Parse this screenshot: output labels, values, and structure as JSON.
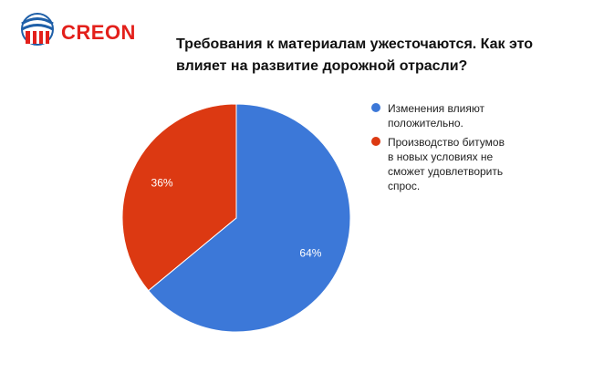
{
  "brand": {
    "name": "CREON",
    "color": "#e3201b",
    "logo_blue": "#1e5fa8"
  },
  "chart_data": {
    "type": "pie",
    "title": "Требования к материалам ужесточаются. Как это влияет на развитие дорожной отрасли?",
    "slices": [
      {
        "label": "Изменения влияют положительно.",
        "value": 64,
        "display": "64%",
        "color": "#3c78d8"
      },
      {
        "label": "Производство битумов в новых условиях не сможет удовлетворить спрос.",
        "value": 36,
        "display": "36%",
        "color": "#dc3912"
      }
    ],
    "legend_position": "right",
    "start_angle": "top, clockwise"
  }
}
